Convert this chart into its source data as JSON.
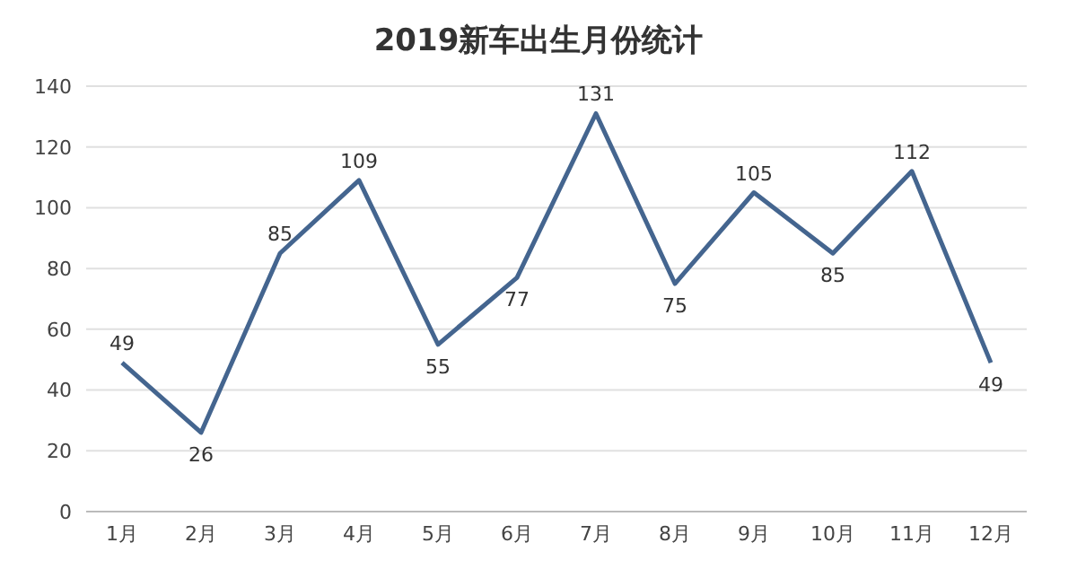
{
  "chart_data": {
    "type": "line",
    "title": "2019新车出生月份统计",
    "categories": [
      "1月",
      "2月",
      "3月",
      "4月",
      "5月",
      "6月",
      "7月",
      "8月",
      "9月",
      "10月",
      "11月",
      "12月"
    ],
    "series": [
      {
        "color": "#44658f",
        "values": [
          49,
          26,
          85,
          109,
          55,
          77,
          131,
          75,
          105,
          85,
          112,
          49
        ]
      }
    ],
    "ylim": [
      0,
      140
    ],
    "yticks": [
      0,
      20,
      40,
      60,
      80,
      100,
      120,
      140
    ],
    "grid": "y",
    "data_labels": true,
    "marker": "none",
    "line_style": "solid"
  }
}
